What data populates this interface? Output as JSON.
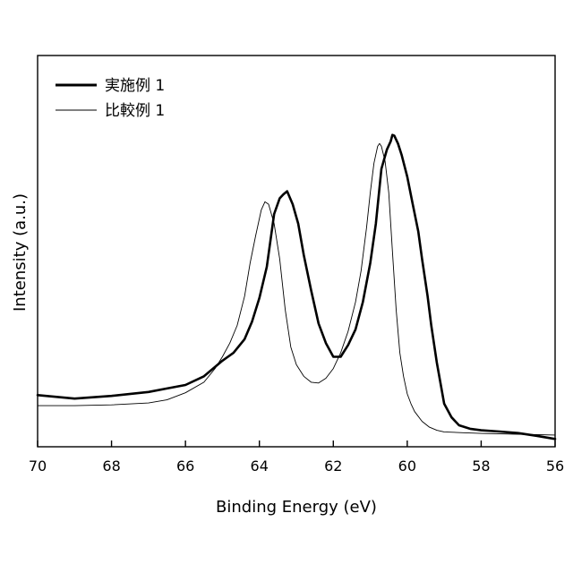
{
  "chart_data": {
    "type": "line",
    "title": "",
    "xlabel": "Binding Energy (eV)",
    "ylabel": "Intensity (a.u.)",
    "xlim": [
      70,
      56
    ],
    "x_reversed": true,
    "ylim": [
      0,
      100
    ],
    "y_ticks_shown": false,
    "grid": false,
    "legend_position": "top-left",
    "x_ticks": [
      70,
      68,
      66,
      64,
      62,
      60,
      58,
      56
    ],
    "series": [
      {
        "name": "実施例 1",
        "color": "#000000",
        "line_style": "thick",
        "x": [
          70,
          69,
          68,
          67,
          66.5,
          66,
          65.5,
          65,
          64.7,
          64.4,
          64.2,
          64.0,
          63.8,
          63.6,
          63.45,
          63.35,
          63.25,
          63.1,
          62.95,
          62.8,
          62.6,
          62.4,
          62.2,
          62.0,
          61.8,
          61.6,
          61.4,
          61.2,
          61.0,
          60.85,
          60.7,
          60.55,
          60.45,
          60.4,
          60.35,
          60.25,
          60.15,
          60.0,
          59.85,
          59.7,
          59.6,
          59.45,
          59.35,
          59.2,
          59.0,
          58.8,
          58.6,
          58.3,
          58.0,
          57.5,
          57,
          56.5,
          56
        ],
        "values": [
          13.2,
          12.3,
          13.0,
          14.0,
          14.9,
          15.8,
          18.0,
          22.0,
          24.0,
          27.5,
          32.0,
          38.0,
          46.0,
          59.5,
          63.5,
          64.5,
          65.3,
          62.0,
          57.0,
          49.0,
          40.0,
          31.5,
          26.5,
          23.0,
          23.0,
          26.0,
          30.0,
          37.0,
          47.0,
          57.0,
          71.0,
          76.0,
          78.0,
          79.7,
          79.5,
          77.5,
          74.5,
          69.0,
          62.0,
          55.0,
          48.0,
          38.5,
          31.0,
          21.5,
          11.0,
          7.5,
          5.5,
          4.6,
          4.2,
          3.9,
          3.5,
          2.8,
          2.0
        ]
      },
      {
        "name": "比較例 1",
        "color": "#000000",
        "line_style": "thin",
        "x": [
          70,
          69,
          68,
          67,
          66.5,
          66,
          65.5,
          65.2,
          65.0,
          64.8,
          64.6,
          64.4,
          64.25,
          64.1,
          63.95,
          63.85,
          63.75,
          63.6,
          63.45,
          63.3,
          63.15,
          63.0,
          62.8,
          62.6,
          62.4,
          62.2,
          62.0,
          61.8,
          61.6,
          61.4,
          61.25,
          61.1,
          61.0,
          60.9,
          60.8,
          60.75,
          60.7,
          60.6,
          60.5,
          60.4,
          60.3,
          60.2,
          60.1,
          60.0,
          59.9,
          59.8,
          59.6,
          59.4,
          59.2,
          59.0,
          58.5,
          58,
          57,
          56
        ],
        "values": [
          10.5,
          10.5,
          10.7,
          11.2,
          12.0,
          13.8,
          16.5,
          20.0,
          23.0,
          26.5,
          31.0,
          38.5,
          47.0,
          54.0,
          60.5,
          62.6,
          62.0,
          57.0,
          48.0,
          35.0,
          25.5,
          21.0,
          18.0,
          16.5,
          16.3,
          17.5,
          20.0,
          24.0,
          29.5,
          37.0,
          45.0,
          56.0,
          65.0,
          72.5,
          76.8,
          77.5,
          76.8,
          73.0,
          65.0,
          50.0,
          35.0,
          24.0,
          18.0,
          13.5,
          11.0,
          9.0,
          6.5,
          5.0,
          4.2,
          3.8,
          3.6,
          3.4,
          3.2,
          3.0
        ]
      }
    ]
  }
}
